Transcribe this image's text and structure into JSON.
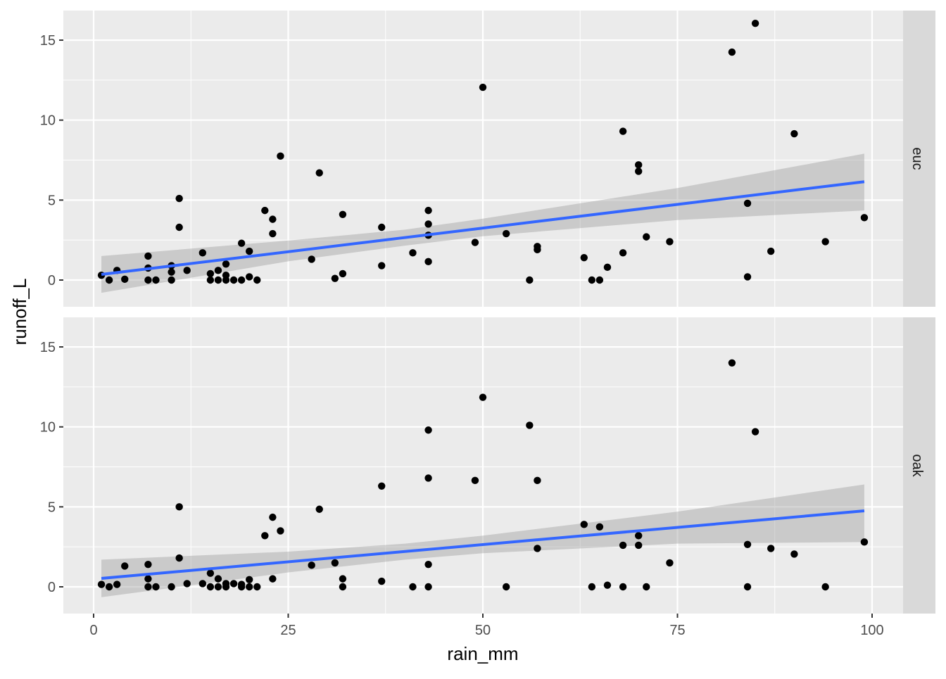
{
  "chart_data": {
    "type": "scatter",
    "xlabel": "rain_mm",
    "ylabel": "runoff_L",
    "xlim": [
      -8,
      104
    ],
    "ylim": [
      -1.5,
      16.8
    ],
    "x_ticks": [
      0,
      25,
      50,
      75,
      100
    ],
    "y_ticks": [
      0,
      5,
      10,
      15
    ],
    "grid": true,
    "colors": {
      "points": "#000000",
      "fit_line": "#3366FF",
      "ribbon": "#BEBEBE",
      "panel": "#EBEBEB",
      "strip": "#D9D9D9"
    },
    "facets": [
      {
        "label": "euc",
        "points": [
          [
            1,
            0.3
          ],
          [
            2,
            0
          ],
          [
            3,
            0.6
          ],
          [
            4,
            0.05
          ],
          [
            7,
            1.5
          ],
          [
            7,
            0.75
          ],
          [
            7,
            0
          ],
          [
            8,
            0
          ],
          [
            10,
            0.9
          ],
          [
            10,
            0.5
          ],
          [
            10,
            0
          ],
          [
            11,
            5.1
          ],
          [
            11,
            3.3
          ],
          [
            12,
            0.6
          ],
          [
            14,
            1.7
          ],
          [
            15,
            0.4
          ],
          [
            15,
            0
          ],
          [
            16,
            0.6
          ],
          [
            16,
            0
          ],
          [
            17,
            1.0
          ],
          [
            17,
            0.3
          ],
          [
            17,
            0
          ],
          [
            18,
            0
          ],
          [
            19,
            2.3
          ],
          [
            19,
            0
          ],
          [
            20,
            1.8
          ],
          [
            20,
            0.2
          ],
          [
            21,
            0
          ],
          [
            22,
            4.35
          ],
          [
            23,
            3.8
          ],
          [
            23,
            2.9
          ],
          [
            24,
            7.75
          ],
          [
            28,
            1.3
          ],
          [
            29,
            6.7
          ],
          [
            31,
            0.1
          ],
          [
            32,
            4.1
          ],
          [
            32,
            0.4
          ],
          [
            37,
            3.3
          ],
          [
            37,
            0.9
          ],
          [
            41,
            1.7
          ],
          [
            43,
            4.35
          ],
          [
            43,
            3.5
          ],
          [
            43,
            2.8
          ],
          [
            43,
            1.15
          ],
          [
            49,
            2.35
          ],
          [
            50,
            12.05
          ],
          [
            53,
            2.9
          ],
          [
            56,
            0
          ],
          [
            57,
            2.1
          ],
          [
            57,
            1.9
          ],
          [
            63,
            1.4
          ],
          [
            64,
            0
          ],
          [
            65,
            0
          ],
          [
            66,
            0.8
          ],
          [
            68,
            9.3
          ],
          [
            68,
            1.7
          ],
          [
            70,
            7.2
          ],
          [
            70,
            6.8
          ],
          [
            71,
            2.7
          ],
          [
            74,
            2.4
          ],
          [
            82,
            14.25
          ],
          [
            84,
            4.8
          ],
          [
            84,
            0.2
          ],
          [
            85,
            16.05
          ],
          [
            87,
            1.8
          ],
          [
            90,
            9.15
          ],
          [
            94,
            2.4
          ],
          [
            99,
            3.9
          ]
        ],
        "fit": {
          "x": [
            1,
            99
          ],
          "y": [
            0.35,
            6.15
          ]
        },
        "ribbon": {
          "x": [
            1,
            25,
            40,
            50,
            75,
            99
          ],
          "lower": [
            -0.8,
            1.17,
            2.15,
            2.74,
            3.75,
            4.35
          ],
          "upper": [
            1.5,
            2.47,
            3.15,
            3.84,
            5.75,
            7.9
          ]
        }
      },
      {
        "label": "oak",
        "points": [
          [
            1,
            0.15
          ],
          [
            2,
            0
          ],
          [
            3,
            0.15
          ],
          [
            4,
            1.3
          ],
          [
            7,
            1.4
          ],
          [
            7,
            0.5
          ],
          [
            7,
            0
          ],
          [
            8,
            0
          ],
          [
            10,
            0
          ],
          [
            11,
            5.0
          ],
          [
            11,
            1.8
          ],
          [
            12,
            0.2
          ],
          [
            14,
            0.2
          ],
          [
            15,
            0.85
          ],
          [
            15,
            0
          ],
          [
            16,
            0.5
          ],
          [
            16,
            0
          ],
          [
            17,
            0
          ],
          [
            17,
            0.2
          ],
          [
            18,
            0.2
          ],
          [
            19,
            0.15
          ],
          [
            19,
            0
          ],
          [
            20,
            0.45
          ],
          [
            20,
            0
          ],
          [
            21,
            0
          ],
          [
            22,
            3.2
          ],
          [
            23,
            4.35
          ],
          [
            23,
            0.5
          ],
          [
            24,
            3.5
          ],
          [
            28,
            1.35
          ],
          [
            29,
            4.85
          ],
          [
            31,
            1.5
          ],
          [
            32,
            0.5
          ],
          [
            32,
            0
          ],
          [
            37,
            6.3
          ],
          [
            37,
            0.35
          ],
          [
            41,
            0
          ],
          [
            43,
            9.8
          ],
          [
            43,
            6.8
          ],
          [
            43,
            1.4
          ],
          [
            43,
            0
          ],
          [
            49,
            6.65
          ],
          [
            50,
            11.85
          ],
          [
            53,
            0
          ],
          [
            56,
            10.1
          ],
          [
            57,
            6.65
          ],
          [
            57,
            2.4
          ],
          [
            63,
            3.9
          ],
          [
            64,
            0
          ],
          [
            65,
            3.75
          ],
          [
            66,
            0.1
          ],
          [
            68,
            2.6
          ],
          [
            68,
            0
          ],
          [
            70,
            3.2
          ],
          [
            70,
            2.6
          ],
          [
            71,
            0
          ],
          [
            74,
            1.5
          ],
          [
            82,
            14.0
          ],
          [
            84,
            2.65
          ],
          [
            84,
            0
          ],
          [
            85,
            9.7
          ],
          [
            87,
            2.4
          ],
          [
            90,
            2.05
          ],
          [
            94,
            0
          ],
          [
            99,
            2.8
          ]
        ],
        "fit": {
          "x": [
            1,
            99
          ],
          "y": [
            0.53,
            4.75
          ]
        },
        "ribbon": {
          "x": [
            1,
            25,
            40,
            50,
            75,
            99
          ],
          "lower": [
            -0.65,
            0.9,
            1.7,
            2.1,
            2.7,
            2.8
          ],
          "upper": [
            1.7,
            2.2,
            2.7,
            3.2,
            4.7,
            6.4
          ]
        }
      }
    ]
  }
}
